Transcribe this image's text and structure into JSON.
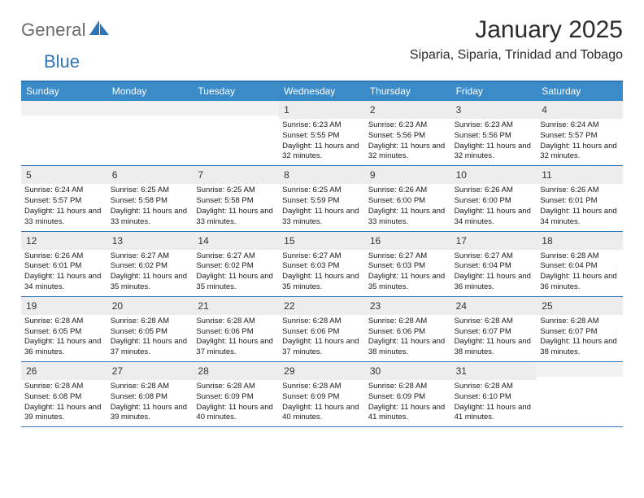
{
  "brand": {
    "text1": "General",
    "text2": "Blue"
  },
  "title": "January 2025",
  "subtitle": "Siparia, Siparia, Trinidad and Tobago",
  "colors": {
    "header_bg": "#3b8bc9",
    "accent_border": "#2e75b6",
    "daynum_bg": "#ededed",
    "text": "#1a1a1a",
    "logo_gray": "#6b6b6b",
    "logo_blue": "#2e75b6",
    "page_bg": "#ffffff"
  },
  "typography": {
    "title_fontsize": 30,
    "subtitle_fontsize": 16,
    "weekday_fontsize": 12,
    "body_fontsize": 9.5
  },
  "layout": {
    "week_start": "Sunday",
    "cols": 7,
    "rows": 5
  },
  "weekdays": [
    "Sunday",
    "Monday",
    "Tuesday",
    "Wednesday",
    "Thursday",
    "Friday",
    "Saturday"
  ],
  "days": [
    {
      "n": 1,
      "sunrise": "6:23 AM",
      "sunset": "5:55 PM",
      "daylight": "11 hours and 32 minutes."
    },
    {
      "n": 2,
      "sunrise": "6:23 AM",
      "sunset": "5:56 PM",
      "daylight": "11 hours and 32 minutes."
    },
    {
      "n": 3,
      "sunrise": "6:23 AM",
      "sunset": "5:56 PM",
      "daylight": "11 hours and 32 minutes."
    },
    {
      "n": 4,
      "sunrise": "6:24 AM",
      "sunset": "5:57 PM",
      "daylight": "11 hours and 32 minutes."
    },
    {
      "n": 5,
      "sunrise": "6:24 AM",
      "sunset": "5:57 PM",
      "daylight": "11 hours and 33 minutes."
    },
    {
      "n": 6,
      "sunrise": "6:25 AM",
      "sunset": "5:58 PM",
      "daylight": "11 hours and 33 minutes."
    },
    {
      "n": 7,
      "sunrise": "6:25 AM",
      "sunset": "5:58 PM",
      "daylight": "11 hours and 33 minutes."
    },
    {
      "n": 8,
      "sunrise": "6:25 AM",
      "sunset": "5:59 PM",
      "daylight": "11 hours and 33 minutes."
    },
    {
      "n": 9,
      "sunrise": "6:26 AM",
      "sunset": "6:00 PM",
      "daylight": "11 hours and 33 minutes."
    },
    {
      "n": 10,
      "sunrise": "6:26 AM",
      "sunset": "6:00 PM",
      "daylight": "11 hours and 34 minutes."
    },
    {
      "n": 11,
      "sunrise": "6:26 AM",
      "sunset": "6:01 PM",
      "daylight": "11 hours and 34 minutes."
    },
    {
      "n": 12,
      "sunrise": "6:26 AM",
      "sunset": "6:01 PM",
      "daylight": "11 hours and 34 minutes."
    },
    {
      "n": 13,
      "sunrise": "6:27 AM",
      "sunset": "6:02 PM",
      "daylight": "11 hours and 35 minutes."
    },
    {
      "n": 14,
      "sunrise": "6:27 AM",
      "sunset": "6:02 PM",
      "daylight": "11 hours and 35 minutes."
    },
    {
      "n": 15,
      "sunrise": "6:27 AM",
      "sunset": "6:03 PM",
      "daylight": "11 hours and 35 minutes."
    },
    {
      "n": 16,
      "sunrise": "6:27 AM",
      "sunset": "6:03 PM",
      "daylight": "11 hours and 35 minutes."
    },
    {
      "n": 17,
      "sunrise": "6:27 AM",
      "sunset": "6:04 PM",
      "daylight": "11 hours and 36 minutes."
    },
    {
      "n": 18,
      "sunrise": "6:28 AM",
      "sunset": "6:04 PM",
      "daylight": "11 hours and 36 minutes."
    },
    {
      "n": 19,
      "sunrise": "6:28 AM",
      "sunset": "6:05 PM",
      "daylight": "11 hours and 36 minutes."
    },
    {
      "n": 20,
      "sunrise": "6:28 AM",
      "sunset": "6:05 PM",
      "daylight": "11 hours and 37 minutes."
    },
    {
      "n": 21,
      "sunrise": "6:28 AM",
      "sunset": "6:06 PM",
      "daylight": "11 hours and 37 minutes."
    },
    {
      "n": 22,
      "sunrise": "6:28 AM",
      "sunset": "6:06 PM",
      "daylight": "11 hours and 37 minutes."
    },
    {
      "n": 23,
      "sunrise": "6:28 AM",
      "sunset": "6:06 PM",
      "daylight": "11 hours and 38 minutes."
    },
    {
      "n": 24,
      "sunrise": "6:28 AM",
      "sunset": "6:07 PM",
      "daylight": "11 hours and 38 minutes."
    },
    {
      "n": 25,
      "sunrise": "6:28 AM",
      "sunset": "6:07 PM",
      "daylight": "11 hours and 38 minutes."
    },
    {
      "n": 26,
      "sunrise": "6:28 AM",
      "sunset": "6:08 PM",
      "daylight": "11 hours and 39 minutes."
    },
    {
      "n": 27,
      "sunrise": "6:28 AM",
      "sunset": "6:08 PM",
      "daylight": "11 hours and 39 minutes."
    },
    {
      "n": 28,
      "sunrise": "6:28 AM",
      "sunset": "6:09 PM",
      "daylight": "11 hours and 40 minutes."
    },
    {
      "n": 29,
      "sunrise": "6:28 AM",
      "sunset": "6:09 PM",
      "daylight": "11 hours and 40 minutes."
    },
    {
      "n": 30,
      "sunrise": "6:28 AM",
      "sunset": "6:09 PM",
      "daylight": "11 hours and 41 minutes."
    },
    {
      "n": 31,
      "sunrise": "6:28 AM",
      "sunset": "6:10 PM",
      "daylight": "11 hours and 41 minutes."
    }
  ],
  "first_day_col": 3,
  "labels": {
    "sunrise": "Sunrise:",
    "sunset": "Sunset:",
    "daylight": "Daylight:"
  }
}
